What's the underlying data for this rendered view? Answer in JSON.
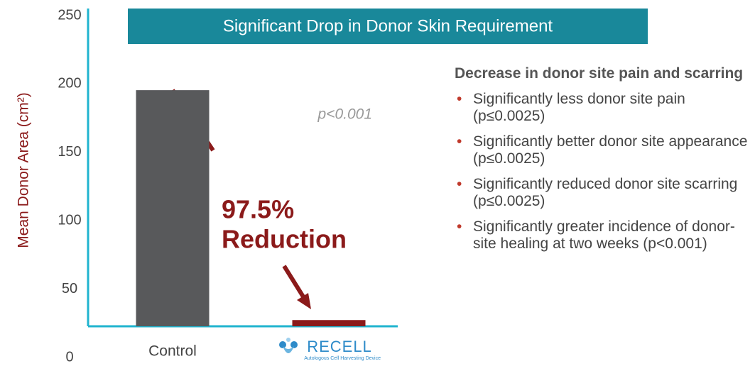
{
  "chart_data": {
    "type": "bar",
    "title": "Significant Drop in Donor Skin Requirement",
    "y_label": "Mean Donor Area (cm²)",
    "categories": [
      "Control",
      "RECELL"
    ],
    "values": [
      190,
      5
    ],
    "colors": [
      "#58595b",
      "#8b1a1a"
    ],
    "ylim": [
      0,
      250
    ],
    "yticks": [
      0,
      50,
      100,
      150,
      200,
      250
    ],
    "grid": false,
    "annotations": [
      "p<0.001",
      "97.5%",
      "Reduction"
    ],
    "logo_caption": "Autologous Cell Harvesting Device"
  },
  "side_panel": {
    "heading": "Decrease in donor site pain and scarring",
    "bullets": [
      "Significantly less donor site pain (p≤0.0025)",
      "Significantly better donor site appearance (p≤0.0025)",
      "Significantly reduced donor site scarring (p≤0.0025)",
      "Significantly greater incidence of donor-site healing at two weeks (p<0.001)"
    ]
  }
}
